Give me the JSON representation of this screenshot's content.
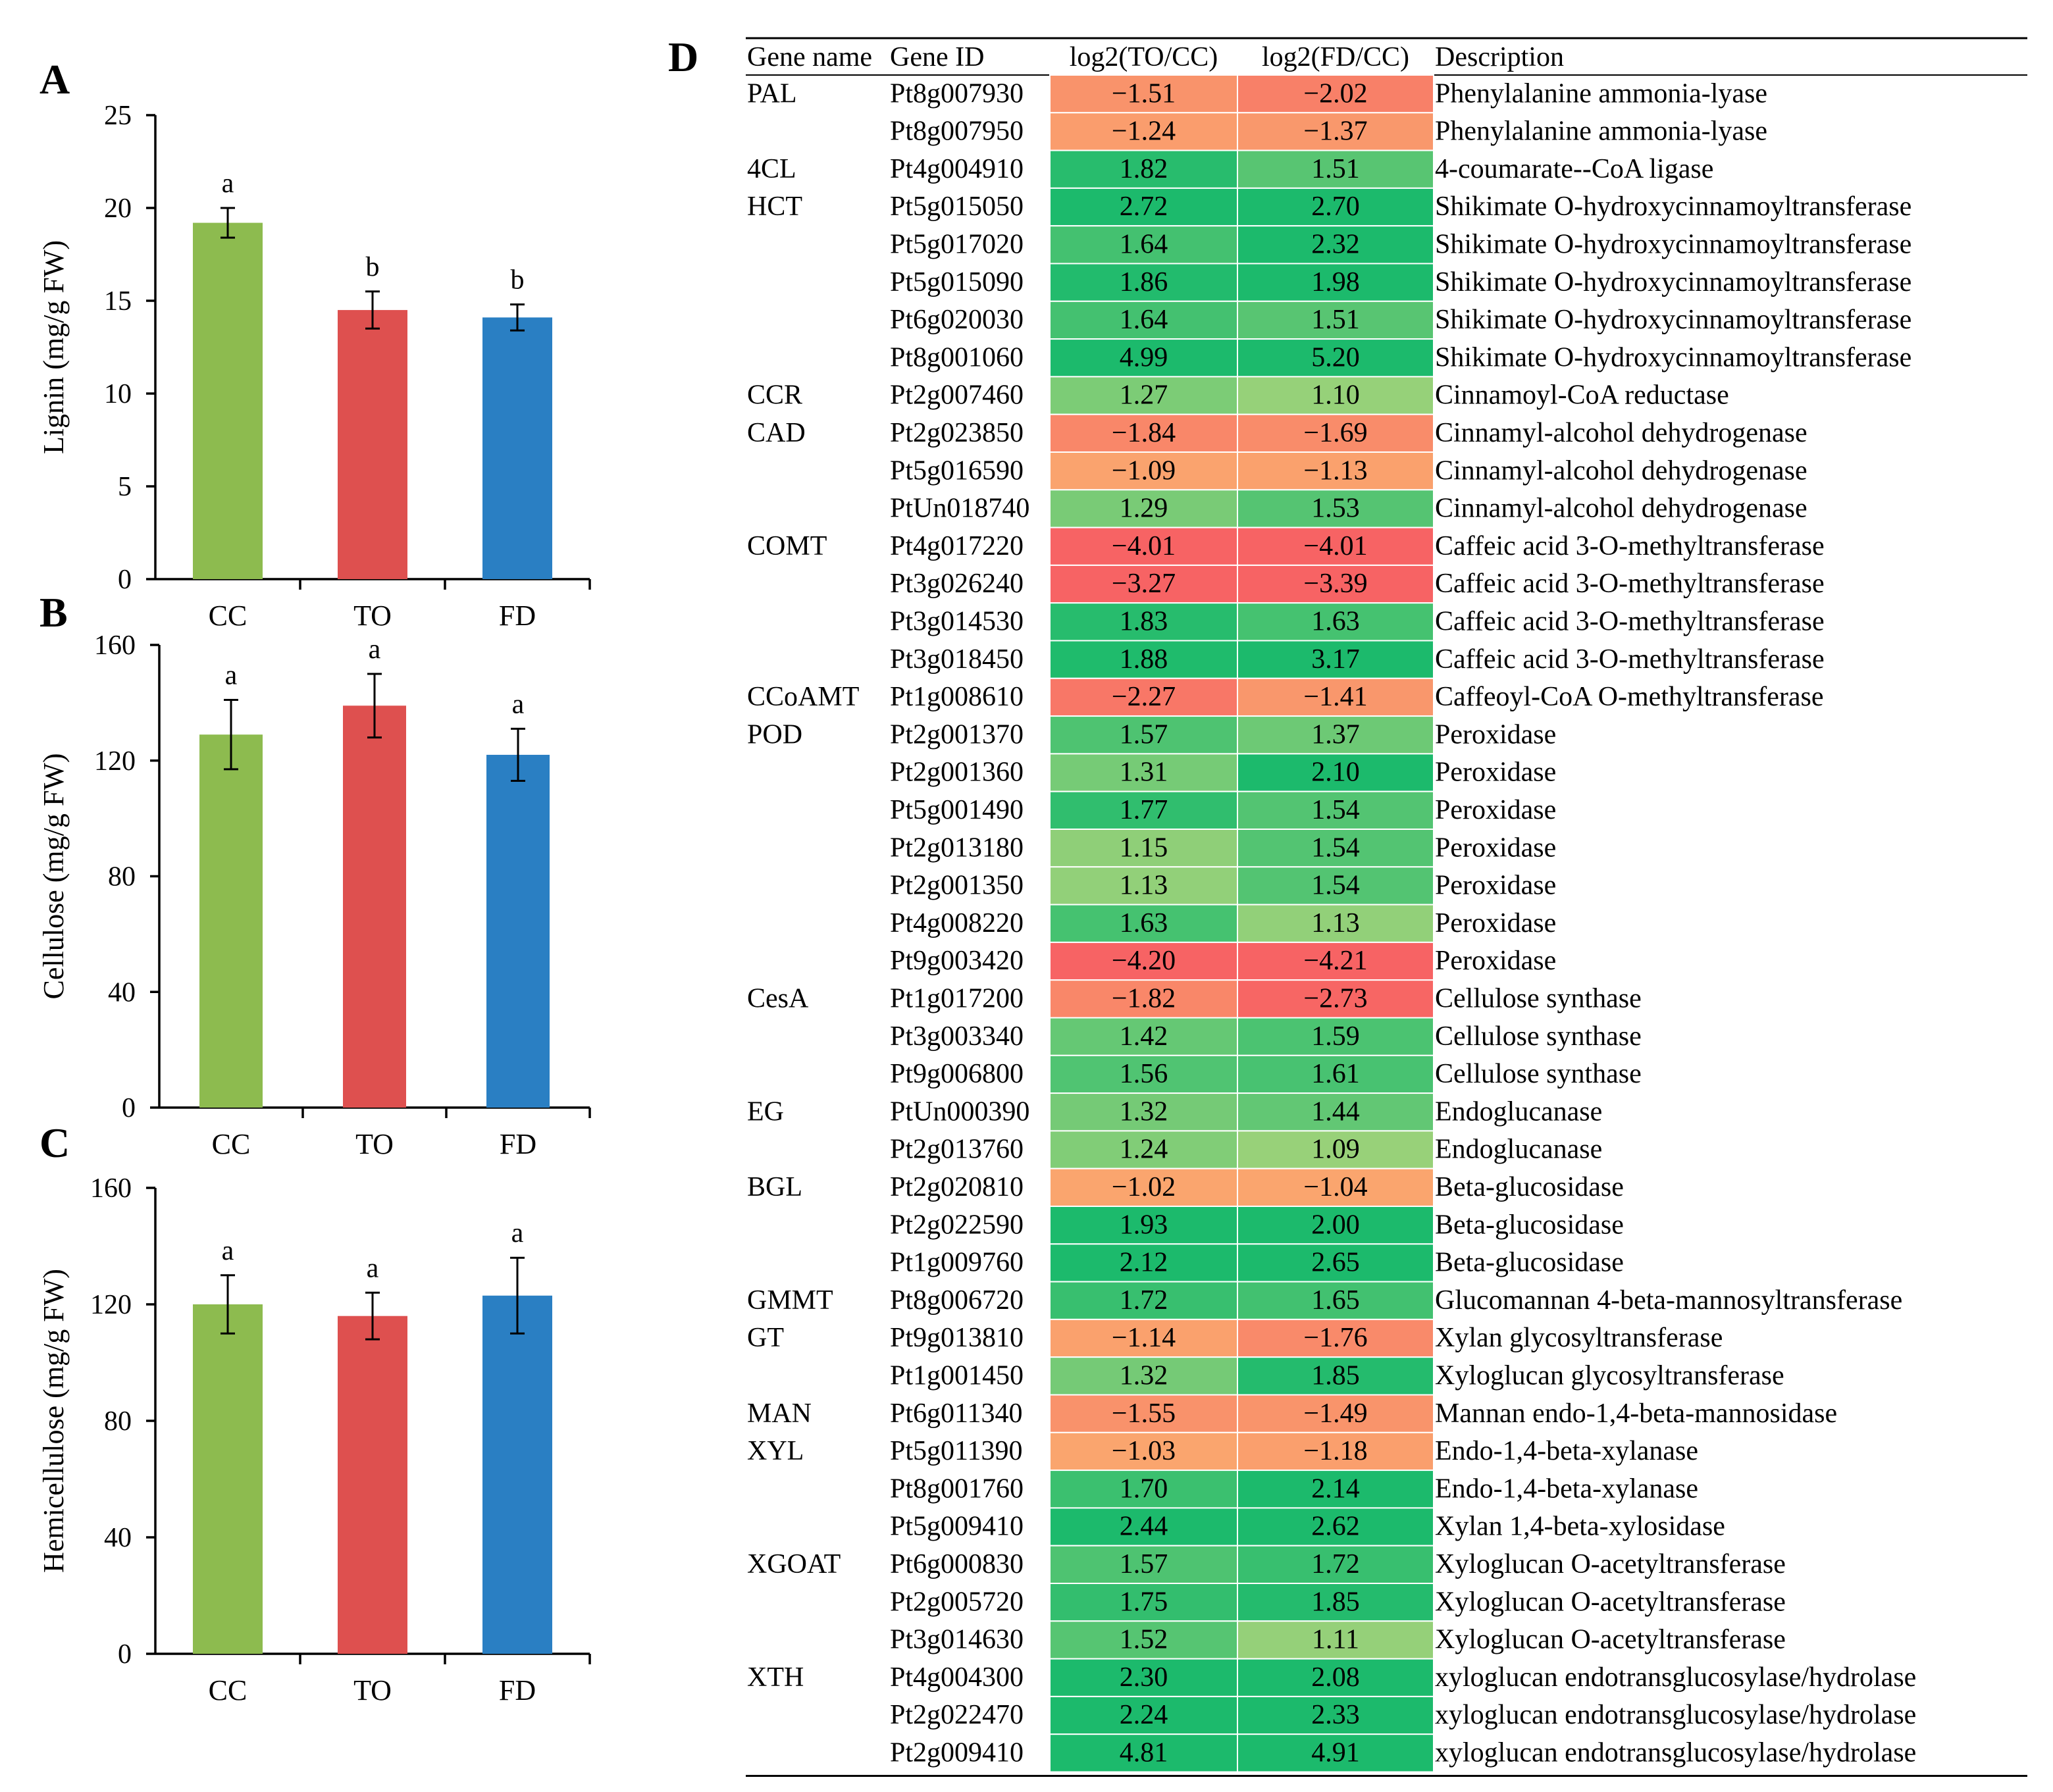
{
  "chart_data": [
    {
      "panel": "A",
      "type": "bar",
      "categories": [
        "CC",
        "TO",
        "FD"
      ],
      "values": [
        19.2,
        14.5,
        14.1
      ],
      "errors": [
        0.8,
        1.0,
        0.7
      ],
      "significance": [
        "a",
        "b",
        "b"
      ],
      "colors": [
        "#8dbb4f",
        "#de504f",
        "#2a7fc3"
      ],
      "ylabel": "Lignin (mg/g FW)",
      "ylim": [
        0,
        25
      ],
      "yticks": [
        0,
        5,
        10,
        15,
        20,
        25
      ]
    },
    {
      "panel": "B",
      "type": "bar",
      "categories": [
        "CC",
        "TO",
        "FD"
      ],
      "values": [
        129,
        139,
        122
      ],
      "errors": [
        12,
        11,
        9
      ],
      "significance": [
        "a",
        "a",
        "a"
      ],
      "colors": [
        "#8dbb4f",
        "#de504f",
        "#2a7fc3"
      ],
      "ylabel": "Cellulose (mg/g FW)",
      "ylim": [
        0,
        160
      ],
      "yticks": [
        0,
        40,
        80,
        120,
        160
      ]
    },
    {
      "panel": "C",
      "type": "bar",
      "categories": [
        "CC",
        "TO",
        "FD"
      ],
      "values": [
        120,
        116,
        123
      ],
      "errors": [
        10,
        8,
        13
      ],
      "significance": [
        "a",
        "a",
        "a"
      ],
      "colors": [
        "#8dbb4f",
        "#de504f",
        "#2a7fc3"
      ],
      "ylabel": "Hemicellulose (mg/g FW)",
      "ylim": [
        0,
        160
      ],
      "yticks": [
        0,
        40,
        80,
        120,
        160
      ]
    },
    {
      "panel": "D",
      "type": "table",
      "columns": [
        "Gene name",
        "Gene ID",
        "log2(TO/CC)",
        "log2(FD/CC)",
        "Description"
      ],
      "rows": [
        [
          "PAL",
          "Pt8g007930",
          "−1.51",
          "−2.02",
          "Phenylalanine ammonia-lyase"
        ],
        [
          "",
          "Pt8g007950",
          "−1.24",
          "−1.37",
          "Phenylalanine ammonia-lyase"
        ],
        [
          "4CL",
          "Pt4g004910",
          "1.82",
          "1.51",
          "4-coumarate--CoA ligase"
        ],
        [
          "HCT",
          "Pt5g015050",
          "2.72",
          "2.70",
          "Shikimate O-hydroxycinnamoyltransferase"
        ],
        [
          "",
          "Pt5g017020",
          "1.64",
          "2.32",
          "Shikimate O-hydroxycinnamoyltransferase"
        ],
        [
          "",
          "Pt5g015090",
          "1.86",
          "1.98",
          "Shikimate O-hydroxycinnamoyltransferase"
        ],
        [
          "",
          "Pt6g020030",
          "1.64",
          "1.51",
          "Shikimate O-hydroxycinnamoyltransferase"
        ],
        [
          "",
          "Pt8g001060",
          "4.99",
          "5.20",
          "Shikimate O-hydroxycinnamoyltransferase"
        ],
        [
          "CCR",
          "Pt2g007460",
          "1.27",
          "1.10",
          "Cinnamoyl-CoA reductase"
        ],
        [
          "CAD",
          "Pt2g023850",
          "−1.84",
          "−1.69",
          "Cinnamyl-alcohol dehydrogenase"
        ],
        [
          "",
          "Pt5g016590",
          "−1.09",
          "−1.13",
          "Cinnamyl-alcohol dehydrogenase"
        ],
        [
          "",
          "PtUn018740",
          "1.29",
          "1.53",
          "Cinnamyl-alcohol dehydrogenase"
        ],
        [
          "COMT",
          "Pt4g017220",
          "−4.01",
          "−4.01",
          "Caffeic acid 3-O-methyltransferase"
        ],
        [
          "",
          "Pt3g026240",
          "−3.27",
          "−3.39",
          "Caffeic acid 3-O-methyltransferase"
        ],
        [
          "",
          "Pt3g014530",
          "1.83",
          "1.63",
          "Caffeic acid 3-O-methyltransferase"
        ],
        [
          "",
          "Pt3g018450",
          "1.88",
          "3.17",
          "Caffeic acid 3-O-methyltransferase"
        ],
        [
          "CCoAMT",
          "Pt1g008610",
          "−2.27",
          "−1.41",
          "Caffeoyl-CoA O-methyltransferase"
        ],
        [
          "POD",
          "Pt2g001370",
          "1.57",
          "1.37",
          "Peroxidase"
        ],
        [
          "",
          "Pt2g001360",
          "1.31",
          "2.10",
          "Peroxidase"
        ],
        [
          "",
          "Pt5g001490",
          "1.77",
          "1.54",
          "Peroxidase"
        ],
        [
          "",
          "Pt2g013180",
          "1.15",
          "1.54",
          "Peroxidase"
        ],
        [
          "",
          "Pt2g001350",
          "1.13",
          "1.54",
          "Peroxidase"
        ],
        [
          "",
          "Pt4g008220",
          "1.63",
          "1.13",
          "Peroxidase"
        ],
        [
          "",
          "Pt9g003420",
          "−4.20",
          "−4.21",
          "Peroxidase"
        ],
        [
          "CesA",
          "Pt1g017200",
          "−1.82",
          "−2.73",
          "Cellulose synthase"
        ],
        [
          "",
          "Pt3g003340",
          "1.42",
          "1.59",
          "Cellulose synthase"
        ],
        [
          "",
          "Pt9g006800",
          "1.56",
          "1.61",
          "Cellulose synthase"
        ],
        [
          "EG",
          "PtUn000390",
          "1.32",
          "1.44",
          "Endoglucanase"
        ],
        [
          "",
          "Pt2g013760",
          "1.24",
          "1.09",
          "Endoglucanase"
        ],
        [
          "BGL",
          "Pt2g020810",
          "−1.02",
          "−1.04",
          "Beta-glucosidase"
        ],
        [
          "",
          "Pt2g022590",
          "1.93",
          "2.00",
          "Beta-glucosidase"
        ],
        [
          "",
          "Pt1g009760",
          "2.12",
          "2.65",
          "Beta-glucosidase"
        ],
        [
          "GMMT",
          "Pt8g006720",
          "1.72",
          "1.65",
          "Glucomannan 4-beta-mannosyltransferase"
        ],
        [
          "GT",
          "Pt9g013810",
          "−1.14",
          "−1.76",
          "Xylan glycosyltransferase"
        ],
        [
          "",
          "Pt1g001450",
          "1.32",
          "1.85",
          "Xyloglucan glycosyltransferase"
        ],
        [
          "MAN",
          "Pt6g011340",
          "−1.55",
          "−1.49",
          "Mannan endo-1,4-beta-mannosidase"
        ],
        [
          "XYL",
          "Pt5g011390",
          "−1.03",
          "−1.18",
          "Endo-1,4-beta-xylanase"
        ],
        [
          "",
          "Pt8g001760",
          "1.70",
          "2.14",
          "Endo-1,4-beta-xylanase"
        ],
        [
          "",
          "Pt5g009410",
          "2.44",
          "2.62",
          "Xylan 1,4-beta-xylosidase"
        ],
        [
          "XGOAT",
          "Pt6g000830",
          "1.57",
          "1.72",
          "Xyloglucan O-acetyltransferase"
        ],
        [
          "",
          "Pt2g005720",
          "1.75",
          "1.85",
          "Xyloglucan O-acetyltransferase"
        ],
        [
          "",
          "Pt3g014630",
          "1.52",
          "1.11",
          "Xyloglucan O-acetyltransferase"
        ],
        [
          "XTH",
          "Pt4g004300",
          "2.30",
          "2.08",
          "xyloglucan endotransglucosylase/hydrolase"
        ],
        [
          "",
          "Pt2g022470",
          "2.24",
          "2.33",
          "xyloglucan endotransglucosylase/hydrolase"
        ],
        [
          "",
          "Pt2g009410",
          "4.81",
          "4.91",
          "xyloglucan endotransglucosylase/hydrolase"
        ]
      ]
    }
  ]
}
